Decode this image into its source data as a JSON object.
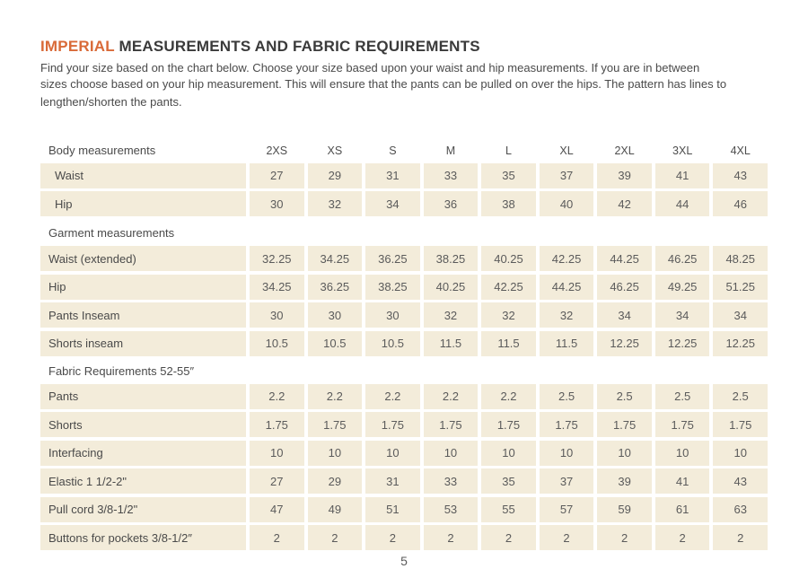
{
  "page": {
    "title_highlight": "IMPERIAL",
    "title_rest": " MEASUREMENTS AND FABRIC REQUIREMENTS",
    "intro_lines": [
      "Find your size based on the chart below. Choose your size based upon your waist and hip measurements. If you are in between",
      "sizes choose based on your hip measurement. This will ensure that the pants can be pulled on over the hips. The pattern has lines to",
      "lengthen/shorten the pants."
    ],
    "page_number": "5"
  },
  "colors": {
    "accent_orange": "#d96a38",
    "cell_background": "#f3ecda",
    "text_dark": "#3a3a3a",
    "text_gray": "#5b5b5b"
  },
  "table": {
    "size_headers": [
      "2XS",
      "XS",
      "S",
      "M",
      "L",
      "XL",
      "2XL",
      "3XL",
      "4XL"
    ],
    "sections": [
      {
        "label": "Body measurements",
        "show_sizes": true,
        "rows": [
          {
            "label": "Waist",
            "indent": true,
            "values": [
              "27",
              "29",
              "31",
              "33",
              "35",
              "37",
              "39",
              "41",
              "43"
            ]
          },
          {
            "label": "Hip",
            "indent": true,
            "values": [
              "30",
              "32",
              "34",
              "36",
              "38",
              "40",
              "42",
              "44",
              "46"
            ]
          }
        ]
      },
      {
        "label": "Garment measurements",
        "show_sizes": false,
        "rows": [
          {
            "label": "Waist (extended)",
            "indent": false,
            "values": [
              "32.25",
              "34.25",
              "36.25",
              "38.25",
              "40.25",
              "42.25",
              "44.25",
              "46.25",
              "48.25"
            ]
          },
          {
            "label": "Hip",
            "indent": false,
            "values": [
              "34.25",
              "36.25",
              "38.25",
              "40.25",
              "42.25",
              "44.25",
              "46.25",
              "49.25",
              "51.25"
            ]
          },
          {
            "label": "Pants Inseam",
            "indent": false,
            "values": [
              "30",
              "30",
              "30",
              "32",
              "32",
              "32",
              "34",
              "34",
              "34"
            ]
          },
          {
            "label": "Shorts inseam",
            "indent": false,
            "values": [
              "10.5",
              "10.5",
              "10.5",
              "11.5",
              "11.5",
              "11.5",
              "12.25",
              "12.25",
              "12.25"
            ]
          }
        ]
      },
      {
        "label": "Fabric Requirements 52-55″",
        "show_sizes": false,
        "rows": [
          {
            "label": "Pants",
            "indent": false,
            "values": [
              "2.2",
              "2.2",
              "2.2",
              "2.2",
              "2.2",
              "2.5",
              "2.5",
              "2.5",
              "2.5"
            ]
          },
          {
            "label": "Shorts",
            "indent": false,
            "values": [
              "1.75",
              "1.75",
              "1.75",
              "1.75",
              "1.75",
              "1.75",
              "1.75",
              "1.75",
              "1.75"
            ]
          },
          {
            "label": "Interfacing",
            "indent": false,
            "values": [
              "10",
              "10",
              "10",
              "10",
              "10",
              "10",
              "10",
              "10",
              "10"
            ]
          },
          {
            "label": "Elastic 1 1/2-2\"",
            "indent": false,
            "values": [
              "27",
              "29",
              "31",
              "33",
              "35",
              "37",
              "39",
              "41",
              "43"
            ]
          },
          {
            "label": "Pull cord 3/8-1/2\"",
            "indent": false,
            "values": [
              "47",
              "49",
              "51",
              "53",
              "55",
              "57",
              "59",
              "61",
              "63"
            ]
          },
          {
            "label": "Buttons for pockets 3/8-1/2″",
            "indent": false,
            "values": [
              "2",
              "2",
              "2",
              "2",
              "2",
              "2",
              "2",
              "2",
              "2"
            ]
          }
        ]
      }
    ]
  }
}
